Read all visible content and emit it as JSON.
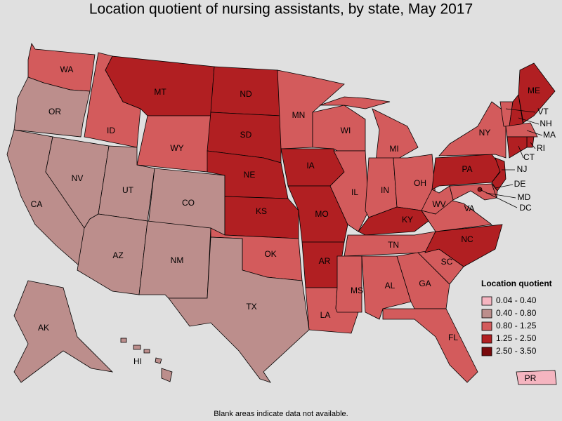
{
  "title": "Location quotient of nursing assistants, by state, May 2017",
  "legend": {
    "title": "Location quotient",
    "items": [
      {
        "label": "0.04 - 0.40",
        "color": "#f5b5c0"
      },
      {
        "label": "0.40 - 0.80",
        "color": "#bc8e8c"
      },
      {
        "label": "0.80 - 1.25",
        "color": "#d35b5c"
      },
      {
        "label": "1.25 - 2.50",
        "color": "#b11f22"
      },
      {
        "label": "2.50 - 3.50",
        "color": "#7a0a0d"
      }
    ]
  },
  "states": [
    {
      "label": "WA",
      "color": "#d35b5c"
    },
    {
      "label": "OR",
      "color": "#bc8e8c"
    },
    {
      "label": "CA",
      "color": "#bc8e8c"
    },
    {
      "label": "NV",
      "color": "#bc8e8c"
    },
    {
      "label": "ID",
      "color": "#d35b5c"
    },
    {
      "label": "MT",
      "color": "#b11f22"
    },
    {
      "label": "WY",
      "color": "#d35b5c"
    },
    {
      "label": "UT",
      "color": "#bc8e8c"
    },
    {
      "label": "CO",
      "color": "#bc8e8c"
    },
    {
      "label": "AZ",
      "color": "#bc8e8c"
    },
    {
      "label": "NM",
      "color": "#bc8e8c"
    },
    {
      "label": "ND",
      "color": "#b11f22"
    },
    {
      "label": "SD",
      "color": "#b11f22"
    },
    {
      "label": "NE",
      "color": "#b11f22"
    },
    {
      "label": "KS",
      "color": "#b11f22"
    },
    {
      "label": "OK",
      "color": "#d35b5c"
    },
    {
      "label": "TX",
      "color": "#bc8e8c"
    },
    {
      "label": "MN",
      "color": "#d35b5c"
    },
    {
      "label": "IA",
      "color": "#b11f22"
    },
    {
      "label": "MO",
      "color": "#b11f22"
    },
    {
      "label": "AR",
      "color": "#b11f22"
    },
    {
      "label": "LA",
      "color": "#d35b5c"
    },
    {
      "label": "WI",
      "color": "#d35b5c"
    },
    {
      "label": "IL",
      "color": "#d35b5c"
    },
    {
      "label": "MI",
      "color": "#d35b5c"
    },
    {
      "label": "IN",
      "color": "#d35b5c"
    },
    {
      "label": "OH",
      "color": "#d35b5c"
    },
    {
      "label": "KY",
      "color": "#b11f22"
    },
    {
      "label": "TN",
      "color": "#d35b5c"
    },
    {
      "label": "MS",
      "color": "#d35b5c"
    },
    {
      "label": "AL",
      "color": "#d35b5c"
    },
    {
      "label": "GA",
      "color": "#d35b5c"
    },
    {
      "label": "FL",
      "color": "#d35b5c"
    },
    {
      "label": "SC",
      "color": "#d35b5c"
    },
    {
      "label": "NC",
      "color": "#b11f22"
    },
    {
      "label": "VA",
      "color": "#d35b5c"
    },
    {
      "label": "WV",
      "color": "#d35b5c"
    },
    {
      "label": "PA",
      "color": "#b11f22"
    },
    {
      "label": "NY",
      "color": "#d35b5c"
    },
    {
      "label": "VT",
      "color": "#d35b5c"
    },
    {
      "label": "NH",
      "color": "#b11f22"
    },
    {
      "label": "ME",
      "color": "#b11f22"
    },
    {
      "label": "MA",
      "color": "#d35b5c"
    },
    {
      "label": "RI",
      "color": "#b11f22"
    },
    {
      "label": "CT",
      "color": "#b11f22"
    },
    {
      "label": "NJ",
      "color": "#b11f22"
    },
    {
      "label": "DE",
      "color": "#d35b5c"
    },
    {
      "label": "MD",
      "color": "#d35b5c"
    },
    {
      "label": "DC",
      "color": "#7a0a0d"
    },
    {
      "label": "AK",
      "color": "#bc8e8c"
    },
    {
      "label": "HI",
      "color": "#bc8e8c"
    },
    {
      "label": "PR",
      "color": "#f5b5c0"
    }
  ],
  "footnote": "Blank areas indicate data not available."
}
